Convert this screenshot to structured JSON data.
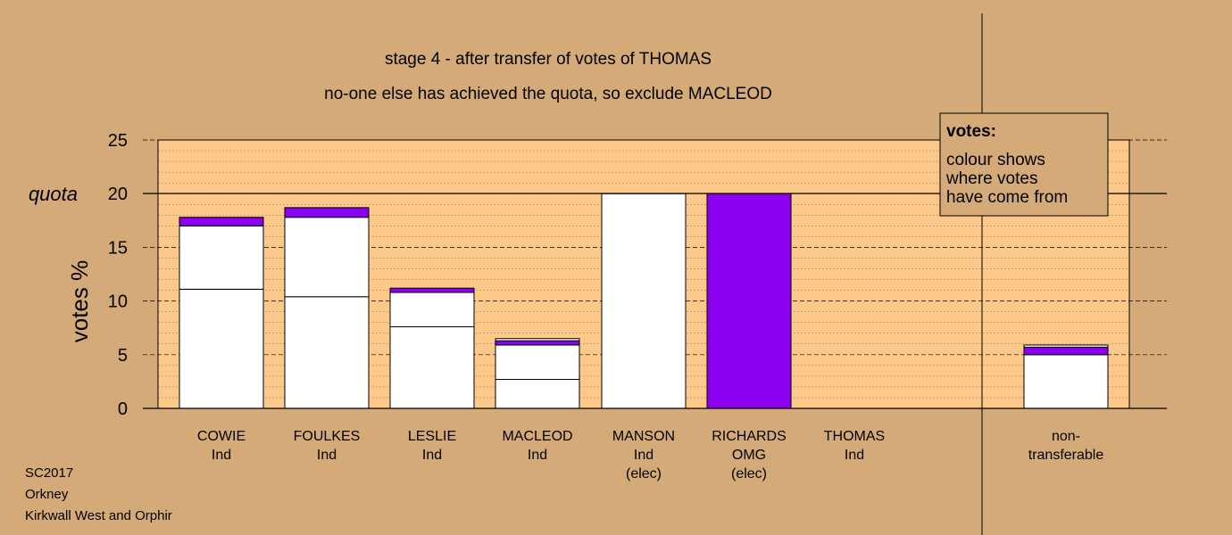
{
  "chart_data": {
    "type": "bar",
    "stacked": true,
    "title": "stage 4 - after transfer of votes of THOMAS",
    "subtitle": "no-one else has achieved the quota, so exclude MACLEOD",
    "ylabel": "votes %",
    "ylim": [
      0,
      25
    ],
    "yticks": [
      0,
      5,
      10,
      15,
      20,
      25
    ],
    "quota": 20,
    "quota_label": "quota",
    "grid": "dashed",
    "legend": {
      "title": "votes:",
      "lines": [
        "colour shows",
        "where votes",
        "have come from"
      ],
      "position": "top-right"
    },
    "categories": [
      {
        "name": "COWIE",
        "party": "Ind",
        "status": ""
      },
      {
        "name": "FOULKES",
        "party": "Ind",
        "status": ""
      },
      {
        "name": "LESLIE",
        "party": "Ind",
        "status": ""
      },
      {
        "name": "MACLEOD",
        "party": "Ind",
        "status": ""
      },
      {
        "name": "MANSON",
        "party": "Ind",
        "status": "(elec)"
      },
      {
        "name": "RICHARDS",
        "party": "OMG",
        "status": "(elec)"
      },
      {
        "name": "THOMAS",
        "party": "Ind",
        "status": ""
      },
      {
        "name": "non-",
        "party": "transferable",
        "status": ""
      }
    ],
    "stacks": [
      [
        {
          "value": 11.1,
          "color": "#ffffff"
        },
        {
          "value": 5.9,
          "color": "#ffffff"
        },
        {
          "value": 0.8,
          "color": "#8b00ee"
        }
      ],
      [
        {
          "value": 10.4,
          "color": "#ffffff"
        },
        {
          "value": 7.4,
          "color": "#ffffff"
        },
        {
          "value": 0.9,
          "color": "#8b00ee"
        }
      ],
      [
        {
          "value": 7.6,
          "color": "#ffffff"
        },
        {
          "value": 3.2,
          "color": "#ffffff"
        },
        {
          "value": 0.4,
          "color": "#8b00ee"
        }
      ],
      [
        {
          "value": 2.7,
          "color": "#ffffff"
        },
        {
          "value": 3.2,
          "color": "#ffffff"
        },
        {
          "value": 0.4,
          "color": "#8b00ee"
        },
        {
          "value": 0.2,
          "color": "#ffffff"
        }
      ],
      [
        {
          "value": 20.0,
          "color": "#ffffff"
        }
      ],
      [
        {
          "value": 20.0,
          "color": "#8b00ee"
        }
      ],
      [],
      [
        {
          "value": 5.0,
          "color": "#ffffff"
        },
        {
          "value": 0.7,
          "color": "#8b00ee"
        },
        {
          "value": 0.2,
          "color": "#ffffff"
        }
      ]
    ]
  },
  "footer": [
    "SC2017",
    "Orkney",
    "Kirkwall West and Orphir"
  ],
  "colors": {
    "background": "#d4aa78",
    "plot_area": "#fdc98b",
    "white_votes": "#ffffff",
    "purple_votes": "#8b00ee",
    "legend_box": "#d4aa78"
  }
}
